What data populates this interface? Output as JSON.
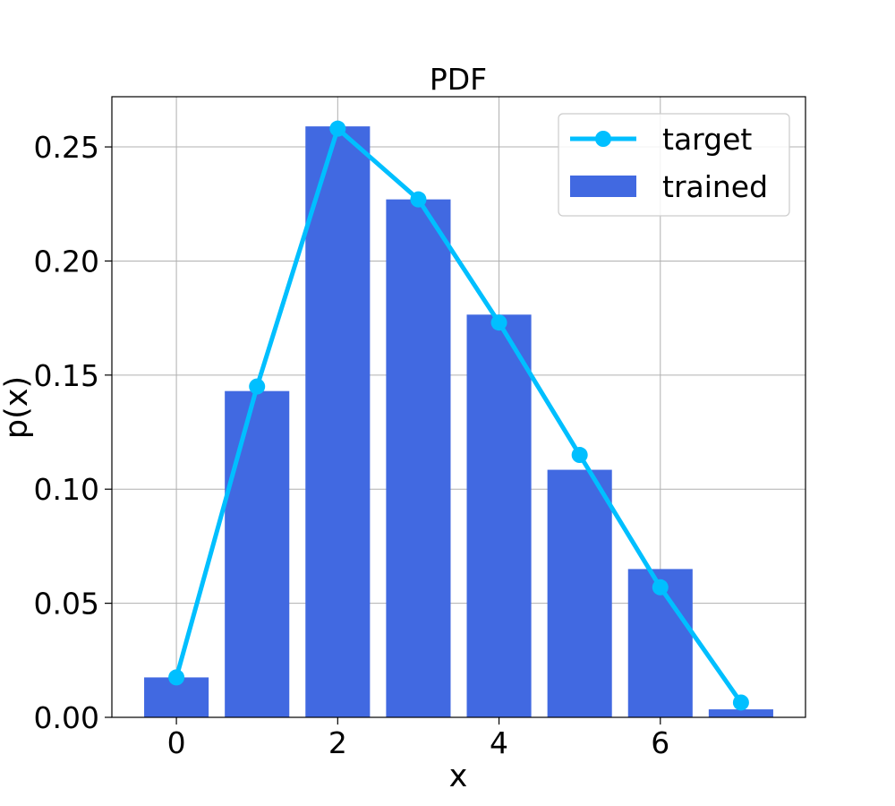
{
  "chart_data": {
    "type": "bar",
    "title": "PDF",
    "xlabel": "x",
    "ylabel": "p(x)",
    "x": [
      0,
      1,
      2,
      3,
      4,
      5,
      6,
      7
    ],
    "xlim": [
      -0.8,
      7.8
    ],
    "ylim": [
      0,
      0.272
    ],
    "xticks": [
      0,
      2,
      4,
      6
    ],
    "xtick_labels": [
      "0",
      "2",
      "4",
      "6"
    ],
    "yticks": [
      0,
      0.05,
      0.1,
      0.15,
      0.2,
      0.25
    ],
    "ytick_labels": [
      "0.00",
      "0.05",
      "0.10",
      "0.15",
      "0.20",
      "0.25"
    ],
    "grid": true,
    "legend_position": "top-right",
    "series": [
      {
        "name": "target",
        "kind": "line",
        "marker": "circle",
        "color": "#00BFFF",
        "values": [
          0.0175,
          0.145,
          0.258,
          0.227,
          0.173,
          0.115,
          0.057,
          0.0065
        ]
      },
      {
        "name": "trained",
        "kind": "bar",
        "color": "#4169E1",
        "values": [
          0.0175,
          0.143,
          0.259,
          0.227,
          0.1765,
          0.1085,
          0.065,
          0.0035
        ]
      }
    ]
  }
}
